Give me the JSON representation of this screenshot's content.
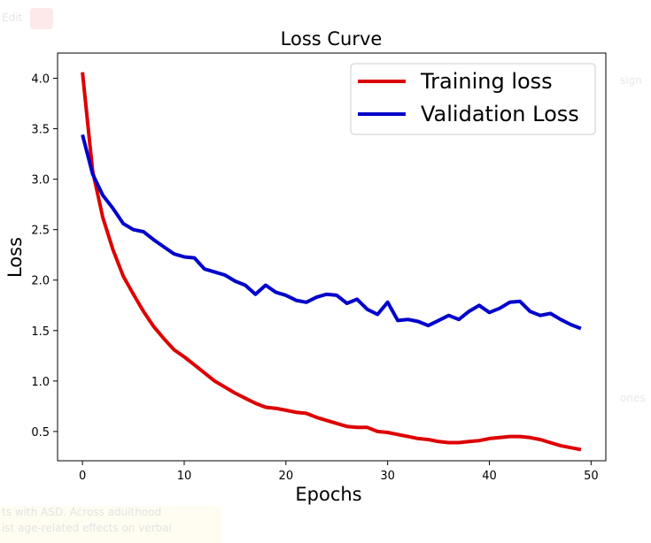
{
  "background": {
    "left_label": "Edit",
    "right_label_1": "sign",
    "right_label_2": "ones",
    "bottom_line_1": "ts with ASD. Across adulthood",
    "bottom_line_2": "ist age-related effects on verbal"
  },
  "chart_data": {
    "type": "line",
    "title": "Loss Curve",
    "xlabel": "Epochs",
    "ylabel": "Loss",
    "xlim": [
      -2.45,
      51.45
    ],
    "ylim": [
      0.21,
      4.25
    ],
    "xticks": [
      "0",
      "10",
      "20",
      "30",
      "40",
      "50"
    ],
    "xtick_values": [
      0,
      10,
      20,
      30,
      40,
      50
    ],
    "yticks": [
      "0.5",
      "1.0",
      "1.5",
      "2.0",
      "2.5",
      "3.0",
      "3.5",
      "4.0"
    ],
    "ytick_values": [
      0.5,
      1.0,
      1.5,
      2.0,
      2.5,
      3.0,
      3.5,
      4.0
    ],
    "grid": false,
    "legend_position": "top-right",
    "x": [
      0,
      1,
      2,
      3,
      4,
      5,
      6,
      7,
      8,
      9,
      10,
      11,
      12,
      13,
      14,
      15,
      16,
      17,
      18,
      19,
      20,
      21,
      22,
      23,
      24,
      25,
      26,
      27,
      28,
      29,
      30,
      31,
      32,
      33,
      34,
      35,
      36,
      37,
      38,
      39,
      40,
      41,
      42,
      43,
      44,
      45,
      46,
      47,
      48,
      49
    ],
    "series": [
      {
        "name": "Training loss",
        "color": "#dd0000",
        "values": [
          4.06,
          3.08,
          2.62,
          2.3,
          2.04,
          1.86,
          1.69,
          1.54,
          1.42,
          1.31,
          1.24,
          1.16,
          1.08,
          1.0,
          0.94,
          0.88,
          0.83,
          0.78,
          0.74,
          0.73,
          0.71,
          0.69,
          0.68,
          0.64,
          0.61,
          0.58,
          0.55,
          0.54,
          0.54,
          0.5,
          0.49,
          0.47,
          0.45,
          0.43,
          0.42,
          0.4,
          0.39,
          0.39,
          0.4,
          0.41,
          0.43,
          0.44,
          0.45,
          0.45,
          0.44,
          0.42,
          0.39,
          0.36,
          0.34,
          0.32
        ]
      },
      {
        "name": "Validation Loss",
        "color": "#0000cc",
        "values": [
          3.44,
          3.05,
          2.84,
          2.71,
          2.56,
          2.5,
          2.48,
          2.4,
          2.33,
          2.26,
          2.23,
          2.22,
          2.11,
          2.08,
          2.05,
          1.99,
          1.95,
          1.86,
          1.95,
          1.88,
          1.85,
          1.8,
          1.78,
          1.83,
          1.86,
          1.85,
          1.77,
          1.81,
          1.71,
          1.66,
          1.78,
          1.6,
          1.61,
          1.59,
          1.55,
          1.6,
          1.65,
          1.61,
          1.69,
          1.75,
          1.68,
          1.72,
          1.78,
          1.79,
          1.69,
          1.65,
          1.67,
          1.61,
          1.56,
          1.52
        ]
      }
    ]
  }
}
